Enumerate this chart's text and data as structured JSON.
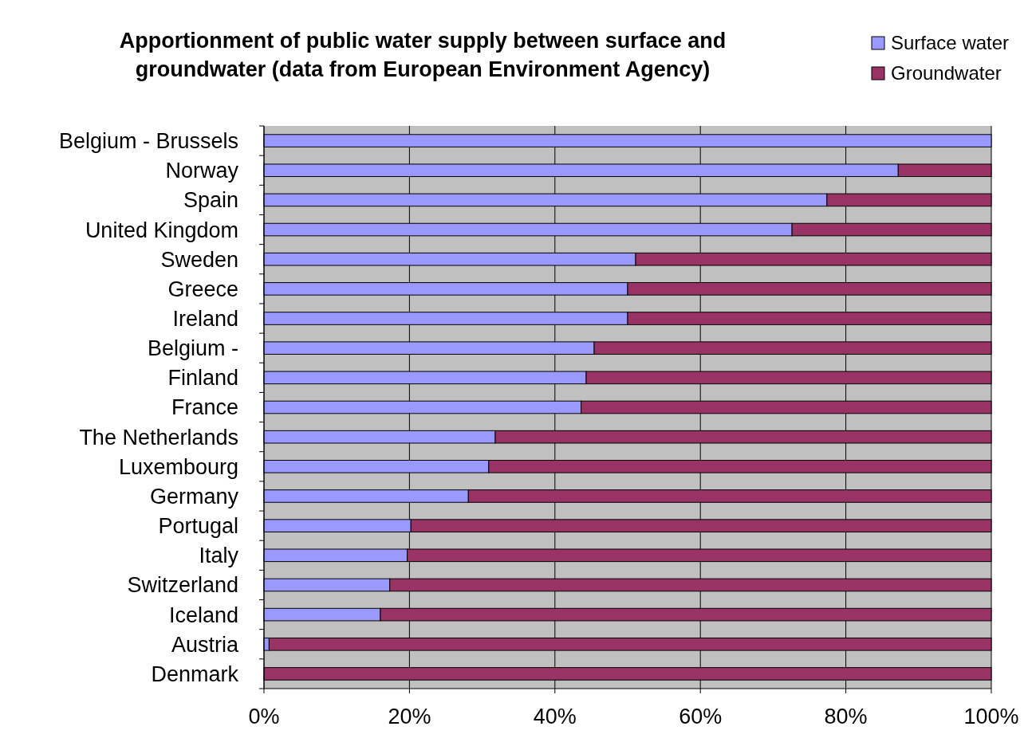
{
  "chart_data": {
    "type": "bar",
    "orientation": "horizontal",
    "stacked": true,
    "title": "Apportionment of public water supply between surface and groundwater (data from European Environment Agency)",
    "categories": [
      "Belgium - Brussels",
      "Norway",
      "Spain",
      "United Kingdom",
      "Sweden",
      "Greece",
      "Ireland",
      "Belgium -",
      "Finland",
      "France",
      "The Netherlands",
      "Luxembourg",
      "Germany",
      "Portugal",
      "Italy",
      "Switzerland",
      "Iceland",
      "Austria",
      "Denmark"
    ],
    "series": [
      {
        "name": "Surface water",
        "color": "#9999ff",
        "values": [
          100,
          87.2,
          77.4,
          72.6,
          51.1,
          50,
          50,
          45.4,
          44.3,
          43.6,
          31.8,
          30.9,
          28.1,
          20.2,
          19.7,
          17.3,
          16,
          0.7,
          0
        ]
      },
      {
        "name": "Groundwater",
        "color": "#993366",
        "values": [
          0,
          12.8,
          22.6,
          27.4,
          48.9,
          50,
          50,
          54.6,
          55.7,
          56.4,
          68.2,
          69.1,
          71.9,
          79.8,
          80.3,
          82.7,
          84,
          99.3,
          100
        ]
      }
    ],
    "xlim": [
      0,
      100
    ],
    "xticks": [
      {
        "value": 0,
        "label": "0%"
      },
      {
        "value": 20,
        "label": "20%"
      },
      {
        "value": 40,
        "label": "40%"
      },
      {
        "value": 60,
        "label": "60%"
      },
      {
        "value": 80,
        "label": "80%"
      },
      {
        "value": 100,
        "label": "100%"
      }
    ],
    "grid": "x",
    "legend": "top right"
  }
}
